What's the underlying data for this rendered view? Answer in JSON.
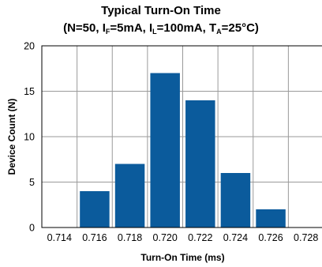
{
  "chart_data": {
    "type": "bar",
    "title": "Typical Turn-On Time",
    "subtitle_parts": [
      "(N=50, I",
      "F",
      "=5mA, I",
      "L",
      "=100mA, T",
      "A",
      "=25°C)"
    ],
    "xlabel": "Turn-On Time (ms)",
    "ylabel": "Device Count (N)",
    "x_ticks": [
      "0.714",
      "0.716",
      "0.718",
      "0.720",
      "0.722",
      "0.724",
      "0.726",
      "0.728"
    ],
    "categories": [
      "0.716",
      "0.718",
      "0.720",
      "0.722",
      "0.724",
      "0.726"
    ],
    "values": [
      4,
      7,
      17,
      14,
      6,
      2
    ],
    "ylim": [
      0,
      20
    ],
    "y_ticks": [
      0,
      5,
      10,
      15,
      20
    ],
    "grid": true,
    "bar_color": "#0b5b9c"
  }
}
